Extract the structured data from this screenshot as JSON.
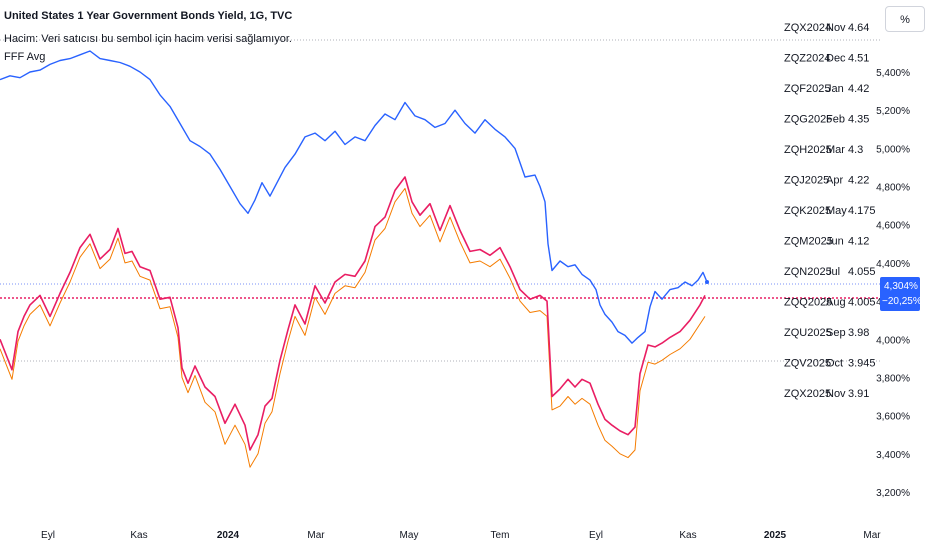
{
  "header": {
    "title": "United States 1 Year Government Bonds Yield, 1G, TVC",
    "volume_note": "Hacim: Veri satıcısı bu sembol için hacim verisi sağlamıyor.",
    "indicator": "FFF Avg"
  },
  "unit_button": "%",
  "colors": {
    "price": "#2962ff",
    "indicator": "#e91e63",
    "indicator_avg": "#f57c00",
    "axis_text": "#131722",
    "grid": "#b2b5be"
  },
  "chart_data": {
    "type": "line",
    "x_ticks": [
      "Eyl",
      "Kas",
      "2024",
      "Mar",
      "May",
      "Tem",
      "Eyl",
      "Kas",
      "2025",
      "Mar"
    ],
    "y_ticks": [
      "5,400%",
      "5,200%",
      "5,000%",
      "4,800%",
      "4,600%",
      "4,400%",
      "4,200%",
      "4,000%",
      "3,800%",
      "3,600%",
      "3,400%",
      "3,200%"
    ],
    "ylim": [
      3.15,
      5.6
    ],
    "last_price_label": "4,304%",
    "last_change_label": "−20,25%",
    "futures_table": [
      {
        "sym": "ZQX2024",
        "mon": "Nov",
        "val": "4.64"
      },
      {
        "sym": "ZQZ2024",
        "mon": "Dec",
        "val": "4.51"
      },
      {
        "sym": "ZQF2025",
        "mon": "Jan",
        "val": "4.42"
      },
      {
        "sym": "ZQG2025",
        "mon": "Feb",
        "val": "4.35"
      },
      {
        "sym": "ZQH2025",
        "mon": "Mar",
        "val": "4.3"
      },
      {
        "sym": "ZQJ2025",
        "mon": "Apr",
        "val": "4.22"
      },
      {
        "sym": "ZQK2025",
        "mon": "May",
        "val": "4.175"
      },
      {
        "sym": "ZQM2025",
        "mon": "Jun",
        "val": "4.12"
      },
      {
        "sym": "ZQN2025",
        "mon": "Jul",
        "val": "4.055"
      },
      {
        "sym": "ZQQ2025",
        "mon": "Aug",
        "val": "4.005"
      },
      {
        "sym": "ZQU2025",
        "mon": "Sep",
        "val": "3.98"
      },
      {
        "sym": "ZQV2025",
        "mon": "Oct",
        "val": "3.945"
      },
      {
        "sym": "ZQX2025",
        "mon": "Nov",
        "val": "3.91"
      }
    ],
    "series": [
      {
        "key": "price",
        "values": [
          [
            0,
            5.36
          ],
          [
            10,
            5.38
          ],
          [
            20,
            5.37
          ],
          [
            30,
            5.4
          ],
          [
            40,
            5.41
          ],
          [
            50,
            5.44
          ],
          [
            60,
            5.46
          ],
          [
            70,
            5.47
          ],
          [
            80,
            5.49
          ],
          [
            90,
            5.51
          ],
          [
            100,
            5.47
          ],
          [
            110,
            5.46
          ],
          [
            120,
            5.45
          ],
          [
            130,
            5.43
          ],
          [
            140,
            5.4
          ],
          [
            150,
            5.36
          ],
          [
            160,
            5.28
          ],
          [
            170,
            5.22
          ],
          [
            180,
            5.13
          ],
          [
            190,
            5.04
          ],
          [
            200,
            5.01
          ],
          [
            210,
            4.97
          ],
          [
            220,
            4.89
          ],
          [
            230,
            4.8
          ],
          [
            240,
            4.71
          ],
          [
            248,
            4.66
          ],
          [
            255,
            4.73
          ],
          [
            262,
            4.82
          ],
          [
            270,
            4.75
          ],
          [
            278,
            4.83
          ],
          [
            285,
            4.9
          ],
          [
            295,
            4.97
          ],
          [
            305,
            5.06
          ],
          [
            315,
            5.08
          ],
          [
            325,
            5.04
          ],
          [
            335,
            5.09
          ],
          [
            345,
            5.02
          ],
          [
            355,
            5.06
          ],
          [
            365,
            5.04
          ],
          [
            375,
            5.12
          ],
          [
            385,
            5.18
          ],
          [
            395,
            5.15
          ],
          [
            405,
            5.24
          ],
          [
            415,
            5.17
          ],
          [
            425,
            5.15
          ],
          [
            435,
            5.11
          ],
          [
            445,
            5.13
          ],
          [
            455,
            5.2
          ],
          [
            465,
            5.13
          ],
          [
            475,
            5.08
          ],
          [
            485,
            5.15
          ],
          [
            495,
            5.1
          ],
          [
            505,
            5.06
          ],
          [
            515,
            5.0
          ],
          [
            525,
            4.85
          ],
          [
            535,
            4.86
          ],
          [
            540,
            4.8
          ],
          [
            545,
            4.72
          ],
          [
            548,
            4.5
          ],
          [
            552,
            4.36
          ],
          [
            560,
            4.41
          ],
          [
            568,
            4.38
          ],
          [
            575,
            4.39
          ],
          [
            582,
            4.34
          ],
          [
            590,
            4.31
          ],
          [
            596,
            4.26
          ],
          [
            600,
            4.18
          ],
          [
            605,
            4.13
          ],
          [
            612,
            4.09
          ],
          [
            618,
            4.04
          ],
          [
            625,
            4.02
          ],
          [
            632,
            3.98
          ],
          [
            638,
            4.01
          ],
          [
            645,
            4.04
          ],
          [
            650,
            4.17
          ],
          [
            655,
            4.25
          ],
          [
            662,
            4.21
          ],
          [
            670,
            4.26
          ],
          [
            678,
            4.27
          ],
          [
            685,
            4.3
          ],
          [
            692,
            4.28
          ],
          [
            698,
            4.31
          ],
          [
            703,
            4.35
          ],
          [
            707,
            4.3
          ]
        ]
      },
      {
        "key": "indicator",
        "values": [
          [
            0,
            4.0
          ],
          [
            6,
            3.92
          ],
          [
            12,
            3.84
          ],
          [
            18,
            4.04
          ],
          [
            24,
            4.12
          ],
          [
            30,
            4.18
          ],
          [
            40,
            4.23
          ],
          [
            50,
            4.12
          ],
          [
            60,
            4.24
          ],
          [
            70,
            4.35
          ],
          [
            80,
            4.48
          ],
          [
            90,
            4.55
          ],
          [
            100,
            4.42
          ],
          [
            110,
            4.47
          ],
          [
            118,
            4.58
          ],
          [
            125,
            4.45
          ],
          [
            132,
            4.46
          ],
          [
            140,
            4.38
          ],
          [
            150,
            4.36
          ],
          [
            160,
            4.21
          ],
          [
            170,
            4.22
          ],
          [
            178,
            4.06
          ],
          [
            182,
            3.85
          ],
          [
            188,
            3.77
          ],
          [
            195,
            3.86
          ],
          [
            205,
            3.75
          ],
          [
            215,
            3.7
          ],
          [
            225,
            3.56
          ],
          [
            235,
            3.66
          ],
          [
            245,
            3.55
          ],
          [
            250,
            3.42
          ],
          [
            258,
            3.5
          ],
          [
            265,
            3.65
          ],
          [
            272,
            3.69
          ],
          [
            280,
            3.89
          ],
          [
            288,
            4.05
          ],
          [
            295,
            4.18
          ],
          [
            305,
            4.08
          ],
          [
            315,
            4.28
          ],
          [
            325,
            4.19
          ],
          [
            335,
            4.3
          ],
          [
            345,
            4.34
          ],
          [
            355,
            4.33
          ],
          [
            365,
            4.41
          ],
          [
            375,
            4.59
          ],
          [
            385,
            4.64
          ],
          [
            395,
            4.78
          ],
          [
            405,
            4.85
          ],
          [
            412,
            4.72
          ],
          [
            420,
            4.65
          ],
          [
            430,
            4.71
          ],
          [
            440,
            4.57
          ],
          [
            450,
            4.7
          ],
          [
            460,
            4.57
          ],
          [
            470,
            4.46
          ],
          [
            480,
            4.47
          ],
          [
            490,
            4.44
          ],
          [
            500,
            4.48
          ],
          [
            510,
            4.38
          ],
          [
            520,
            4.26
          ],
          [
            530,
            4.21
          ],
          [
            540,
            4.23
          ],
          [
            547,
            4.2
          ],
          [
            552,
            3.7
          ],
          [
            560,
            3.74
          ],
          [
            568,
            3.79
          ],
          [
            575,
            3.75
          ],
          [
            582,
            3.79
          ],
          [
            590,
            3.77
          ],
          [
            598,
            3.66
          ],
          [
            605,
            3.58
          ],
          [
            612,
            3.55
          ],
          [
            620,
            3.52
          ],
          [
            628,
            3.5
          ],
          [
            635,
            3.54
          ],
          [
            640,
            3.82
          ],
          [
            648,
            3.97
          ],
          [
            655,
            3.96
          ],
          [
            662,
            3.98
          ],
          [
            670,
            4.01
          ],
          [
            680,
            4.04
          ],
          [
            690,
            4.1
          ],
          [
            700,
            4.18
          ],
          [
            705,
            4.23
          ]
        ]
      },
      {
        "key": "indicator_avg",
        "values": [
          [
            0,
            3.95
          ],
          [
            6,
            3.87
          ],
          [
            12,
            3.79
          ],
          [
            18,
            3.99
          ],
          [
            24,
            4.07
          ],
          [
            30,
            4.13
          ],
          [
            40,
            4.18
          ],
          [
            50,
            4.07
          ],
          [
            60,
            4.19
          ],
          [
            70,
            4.3
          ],
          [
            80,
            4.43
          ],
          [
            90,
            4.5
          ],
          [
            100,
            4.37
          ],
          [
            110,
            4.42
          ],
          [
            118,
            4.53
          ],
          [
            125,
            4.4
          ],
          [
            132,
            4.41
          ],
          [
            140,
            4.33
          ],
          [
            150,
            4.31
          ],
          [
            160,
            4.16
          ],
          [
            170,
            4.17
          ],
          [
            178,
            4.01
          ],
          [
            182,
            3.8
          ],
          [
            188,
            3.72
          ],
          [
            195,
            3.81
          ],
          [
            205,
            3.67
          ],
          [
            215,
            3.62
          ],
          [
            225,
            3.45
          ],
          [
            235,
            3.55
          ],
          [
            245,
            3.45
          ],
          [
            250,
            3.33
          ],
          [
            258,
            3.4
          ],
          [
            265,
            3.56
          ],
          [
            272,
            3.62
          ],
          [
            280,
            3.82
          ],
          [
            288,
            3.99
          ],
          [
            295,
            4.12
          ],
          [
            305,
            4.02
          ],
          [
            315,
            4.22
          ],
          [
            325,
            4.13
          ],
          [
            335,
            4.24
          ],
          [
            345,
            4.28
          ],
          [
            355,
            4.27
          ],
          [
            365,
            4.35
          ],
          [
            375,
            4.52
          ],
          [
            385,
            4.58
          ],
          [
            395,
            4.72
          ],
          [
            405,
            4.79
          ],
          [
            412,
            4.66
          ],
          [
            420,
            4.59
          ],
          [
            430,
            4.65
          ],
          [
            440,
            4.51
          ],
          [
            450,
            4.64
          ],
          [
            460,
            4.51
          ],
          [
            470,
            4.4
          ],
          [
            480,
            4.41
          ],
          [
            490,
            4.38
          ],
          [
            500,
            4.42
          ],
          [
            510,
            4.32
          ],
          [
            520,
            4.2
          ],
          [
            530,
            4.14
          ],
          [
            540,
            4.15
          ],
          [
            547,
            4.12
          ],
          [
            552,
            3.63
          ],
          [
            560,
            3.65
          ],
          [
            568,
            3.7
          ],
          [
            575,
            3.66
          ],
          [
            582,
            3.69
          ],
          [
            590,
            3.66
          ],
          [
            598,
            3.55
          ],
          [
            605,
            3.47
          ],
          [
            612,
            3.44
          ],
          [
            620,
            3.4
          ],
          [
            628,
            3.38
          ],
          [
            635,
            3.42
          ],
          [
            640,
            3.73
          ],
          [
            648,
            3.88
          ],
          [
            655,
            3.87
          ],
          [
            662,
            3.89
          ],
          [
            670,
            3.92
          ],
          [
            680,
            3.95
          ],
          [
            690,
            4.0
          ],
          [
            700,
            4.08
          ],
          [
            705,
            4.12
          ]
        ]
      }
    ]
  }
}
